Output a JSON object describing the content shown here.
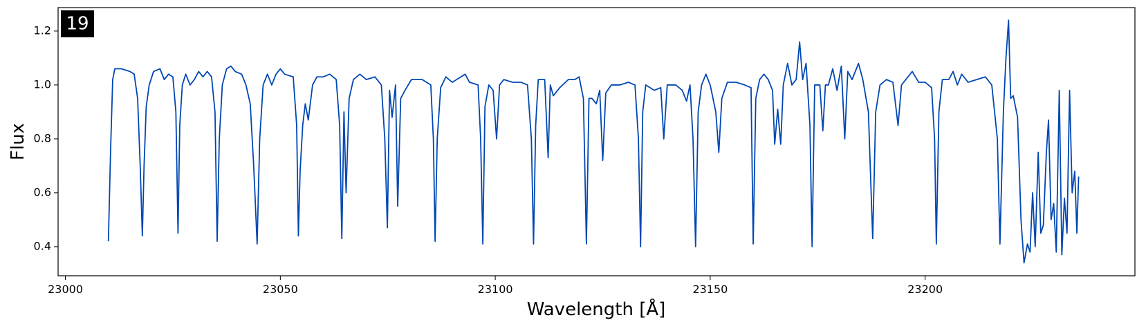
{
  "chart_data": {
    "type": "line",
    "annotation": "19",
    "xlabel": "Wavelength [Å]",
    "ylabel": "Flux",
    "xlim": [
      22998.3,
      23248.8
    ],
    "ylim": [
      0.292,
      1.287
    ],
    "xticks": [
      23000,
      23050,
      23100,
      23150,
      23200
    ],
    "yticks": [
      0.4,
      0.6,
      0.8,
      {
        "value": 1,
        "label": "1.0"
      },
      1.2
    ],
    "grid": false,
    "series": [
      {
        "color": "#0047b3",
        "x": [
          23010.0,
          23010.5,
          23011.0,
          23011.5,
          23013,
          23015,
          23016,
          23016.8,
          23017.4,
          23017.9,
          23018.3,
          23018.8,
          23019.5,
          23020.5,
          23022,
          23023,
          23024,
          23025,
          23025.7,
          23026.2,
          23026.6,
          23027.2,
          23028,
          23029,
          23030,
          23031,
          23032,
          23033,
          23034,
          23034.8,
          23035.3,
          23035.8,
          23036.5,
          23037.5,
          23038.5,
          23039.5,
          23041,
          23042,
          23043,
          23043.8,
          23044.6,
          23045.2,
          23046,
          23047,
          23048,
          23049,
          23050,
          23051,
          23053,
          23053.8,
          23054.2,
          23054.6,
          23055.2,
          23055.8,
          23056.5,
          23057.5,
          23058.5,
          23060,
          23061.5,
          23063,
          23063.8,
          23064.3,
          23064.8,
          23065.3,
          23066,
          23067,
          23068.5,
          23070,
          23072,
          23073.5,
          23074.3,
          23074.9,
          23075.4,
          23076,
          23076.8,
          23077.3,
          23078,
          23079,
          23080.5,
          23083,
          23085,
          23085.6,
          23086,
          23086.5,
          23087.3,
          23088.5,
          23090,
          23092,
          23093,
          23094,
          23096,
          23096.6,
          23097.1,
          23097.6,
          23098.5,
          23099.5,
          23100.3,
          23101,
          23102,
          23104,
          23106,
          23107.5,
          23108.4,
          23108.9,
          23109.4,
          23110,
          23111.5,
          23112.3,
          23112.8,
          23113.5,
          23115,
          23117,
          23118.5,
          23119.5,
          23120.5,
          23121.2,
          23121.8,
          23122.5,
          23123.5,
          23124.3,
          23125,
          23125.7,
          23127,
          23129,
          23131,
          23132.5,
          23133.3,
          23133.8,
          23134.3,
          23135,
          23137,
          23138.5,
          23139.2,
          23140,
          23142,
          23143.5,
          23144.5,
          23145.3,
          23146,
          23146.6,
          23147.2,
          23148,
          23149,
          23150,
          23151.3,
          23152,
          23152.7,
          23154,
          23156,
          23158,
          23159.5,
          23160,
          23160.6,
          23161.5,
          23162.5,
          23163.5,
          23164.5,
          23165,
          23165.7,
          23166.4,
          23167,
          23168,
          23169,
          23170,
          23170.8,
          23171.5,
          23172.3,
          23173.2,
          23173.7,
          23174.3,
          23175.5,
          23176.2,
          23176.8,
          23177.5,
          23178.5,
          23179.5,
          23180.5,
          23181.3,
          23182,
          23183,
          23184.5,
          23185.5,
          23186.8,
          23187.8,
          23188.5,
          23189.5,
          23191,
          23192.5,
          23193.7,
          23194.5,
          23196,
          23197,
          23198.5,
          23200,
          23201.5,
          23202.2,
          23202.6,
          23203.2,
          23204,
          23205.5,
          23206.5,
          23207.5,
          23208.5,
          23210,
          23212,
          23214,
          23215.5,
          23216.8,
          23217.4,
          23218.2,
          23218.8,
          23219.4,
          23219.9,
          23220.5,
          23221.5,
          23222.3,
          23223,
          23223.8,
          23224.4,
          23225,
          23225.6,
          23226.3,
          23226.9,
          23227.5,
          23228.2,
          23228.7,
          23229.3,
          23229.9,
          23230.5,
          23231.2,
          23231.8,
          23232.4,
          23233.0,
          23233.6,
          23234.2,
          23234.8,
          23235.3,
          23235.7
        ],
        "values": [
          0.42,
          0.75,
          1.02,
          1.06,
          1.06,
          1.05,
          1.04,
          0.95,
          0.7,
          0.44,
          0.7,
          0.92,
          1.0,
          1.05,
          1.06,
          1.02,
          1.04,
          1.03,
          0.9,
          0.45,
          0.85,
          1.0,
          1.04,
          1.0,
          1.02,
          1.05,
          1.03,
          1.05,
          1.03,
          0.9,
          0.42,
          0.8,
          1.0,
          1.06,
          1.07,
          1.05,
          1.04,
          1.0,
          0.93,
          0.7,
          0.41,
          0.8,
          1.0,
          1.04,
          1.0,
          1.04,
          1.06,
          1.04,
          1.03,
          0.85,
          0.44,
          0.68,
          0.85,
          0.93,
          0.87,
          1.0,
          1.03,
          1.03,
          1.04,
          1.02,
          0.85,
          0.43,
          0.9,
          0.6,
          0.95,
          1.02,
          1.04,
          1.02,
          1.03,
          1.0,
          0.8,
          0.47,
          0.98,
          0.88,
          1.0,
          0.55,
          0.95,
          0.98,
          1.02,
          1.02,
          1.0,
          0.8,
          0.42,
          0.8,
          0.99,
          1.03,
          1.01,
          1.03,
          1.04,
          1.01,
          1.0,
          0.8,
          0.41,
          0.92,
          1.0,
          0.98,
          0.8,
          1.0,
          1.02,
          1.01,
          1.01,
          1.0,
          0.8,
          0.41,
          0.85,
          1.02,
          1.02,
          0.73,
          1.0,
          0.96,
          0.99,
          1.02,
          1.02,
          1.03,
          0.95,
          0.41,
          0.95,
          0.95,
          0.93,
          0.98,
          0.72,
          0.97,
          1.0,
          1.0,
          1.01,
          1.0,
          0.8,
          0.4,
          0.9,
          1.0,
          0.98,
          0.99,
          0.8,
          1.0,
          1.0,
          0.98,
          0.94,
          1.0,
          0.8,
          0.4,
          0.9,
          1.0,
          1.04,
          1.0,
          0.9,
          0.75,
          0.95,
          1.01,
          1.01,
          1.0,
          0.99,
          0.41,
          0.95,
          1.02,
          1.04,
          1.02,
          0.98,
          0.78,
          0.91,
          0.78,
          1.0,
          1.08,
          1.0,
          1.02,
          1.16,
          1.02,
          1.08,
          0.85,
          0.4,
          1.0,
          1.0,
          0.83,
          1.0,
          1.0,
          1.06,
          0.98,
          1.07,
          0.8,
          1.05,
          1.02,
          1.08,
          1.02,
          0.9,
          0.43,
          0.9,
          1.0,
          1.02,
          1.01,
          0.85,
          1.0,
          1.03,
          1.05,
          1.01,
          1.01,
          0.99,
          0.8,
          0.41,
          0.9,
          1.02,
          1.02,
          1.05,
          1.0,
          1.04,
          1.01,
          1.02,
          1.03,
          1.0,
          0.8,
          0.41,
          0.9,
          1.1,
          1.24,
          0.95,
          0.96,
          0.88,
          0.5,
          0.34,
          0.41,
          0.38,
          0.6,
          0.4,
          0.75,
          0.45,
          0.48,
          0.75,
          0.87,
          0.5,
          0.56,
          0.38,
          0.98,
          0.37,
          0.58,
          0.45,
          0.98,
          0.6,
          0.68,
          0.45,
          0.66
        ]
      }
    ]
  }
}
